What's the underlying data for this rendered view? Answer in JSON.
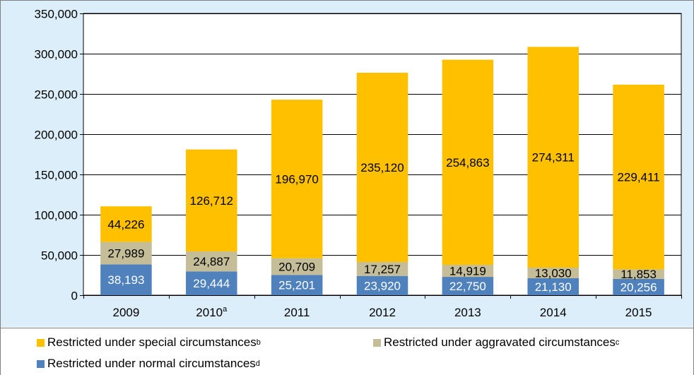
{
  "chart_data": {
    "type": "bar",
    "stacked": true,
    "categories": [
      "2009",
      "2010",
      "2011",
      "2012",
      "2013",
      "2014",
      "2015"
    ],
    "category_superscripts": [
      "",
      "a",
      "",
      "",
      "",
      "",
      ""
    ],
    "series": [
      {
        "name": "Restricted under normal circumstances",
        "superscript": "d",
        "color": "#4f81bd",
        "label_color": "#ffffff",
        "values": [
          38193,
          29444,
          25201,
          23920,
          22750,
          21130,
          20256
        ]
      },
      {
        "name": "Restricted under aggravated circumstances",
        "superscript": "c",
        "color": "#c4bd97",
        "label_color": "#000000",
        "values": [
          27989,
          24887,
          20709,
          17257,
          14919,
          13030,
          11853
        ]
      },
      {
        "name": "Restricted under special circumstances",
        "superscript": "b",
        "color": "#ffc000",
        "label_color": "#000000",
        "values": [
          44226,
          126712,
          196970,
          235120,
          254863,
          274311,
          229411
        ]
      }
    ],
    "data_labels": [
      [
        "38,193",
        "29,444",
        "25,201",
        "23,920",
        "22,750",
        "21,130",
        "20,256"
      ],
      [
        "27,989",
        "24,887",
        "20,709",
        "17,257",
        "14,919",
        "13,030",
        "11,853"
      ],
      [
        "44,226",
        "126,712",
        "196,970",
        "235,120",
        "254,863",
        "274,311",
        "229,411"
      ]
    ],
    "ylim": [
      0,
      350000
    ],
    "yticks": [
      0,
      50000,
      100000,
      150000,
      200000,
      250000,
      300000,
      350000
    ],
    "ytick_labels": [
      "0",
      "50,000",
      "100,000",
      "150,000",
      "200,000",
      "250,000",
      "300,000",
      "350,000"
    ],
    "grid": true,
    "legend_position": "bottom",
    "legend_order": [
      2,
      1,
      0
    ],
    "title": "",
    "xlabel": "",
    "ylabel": ""
  }
}
